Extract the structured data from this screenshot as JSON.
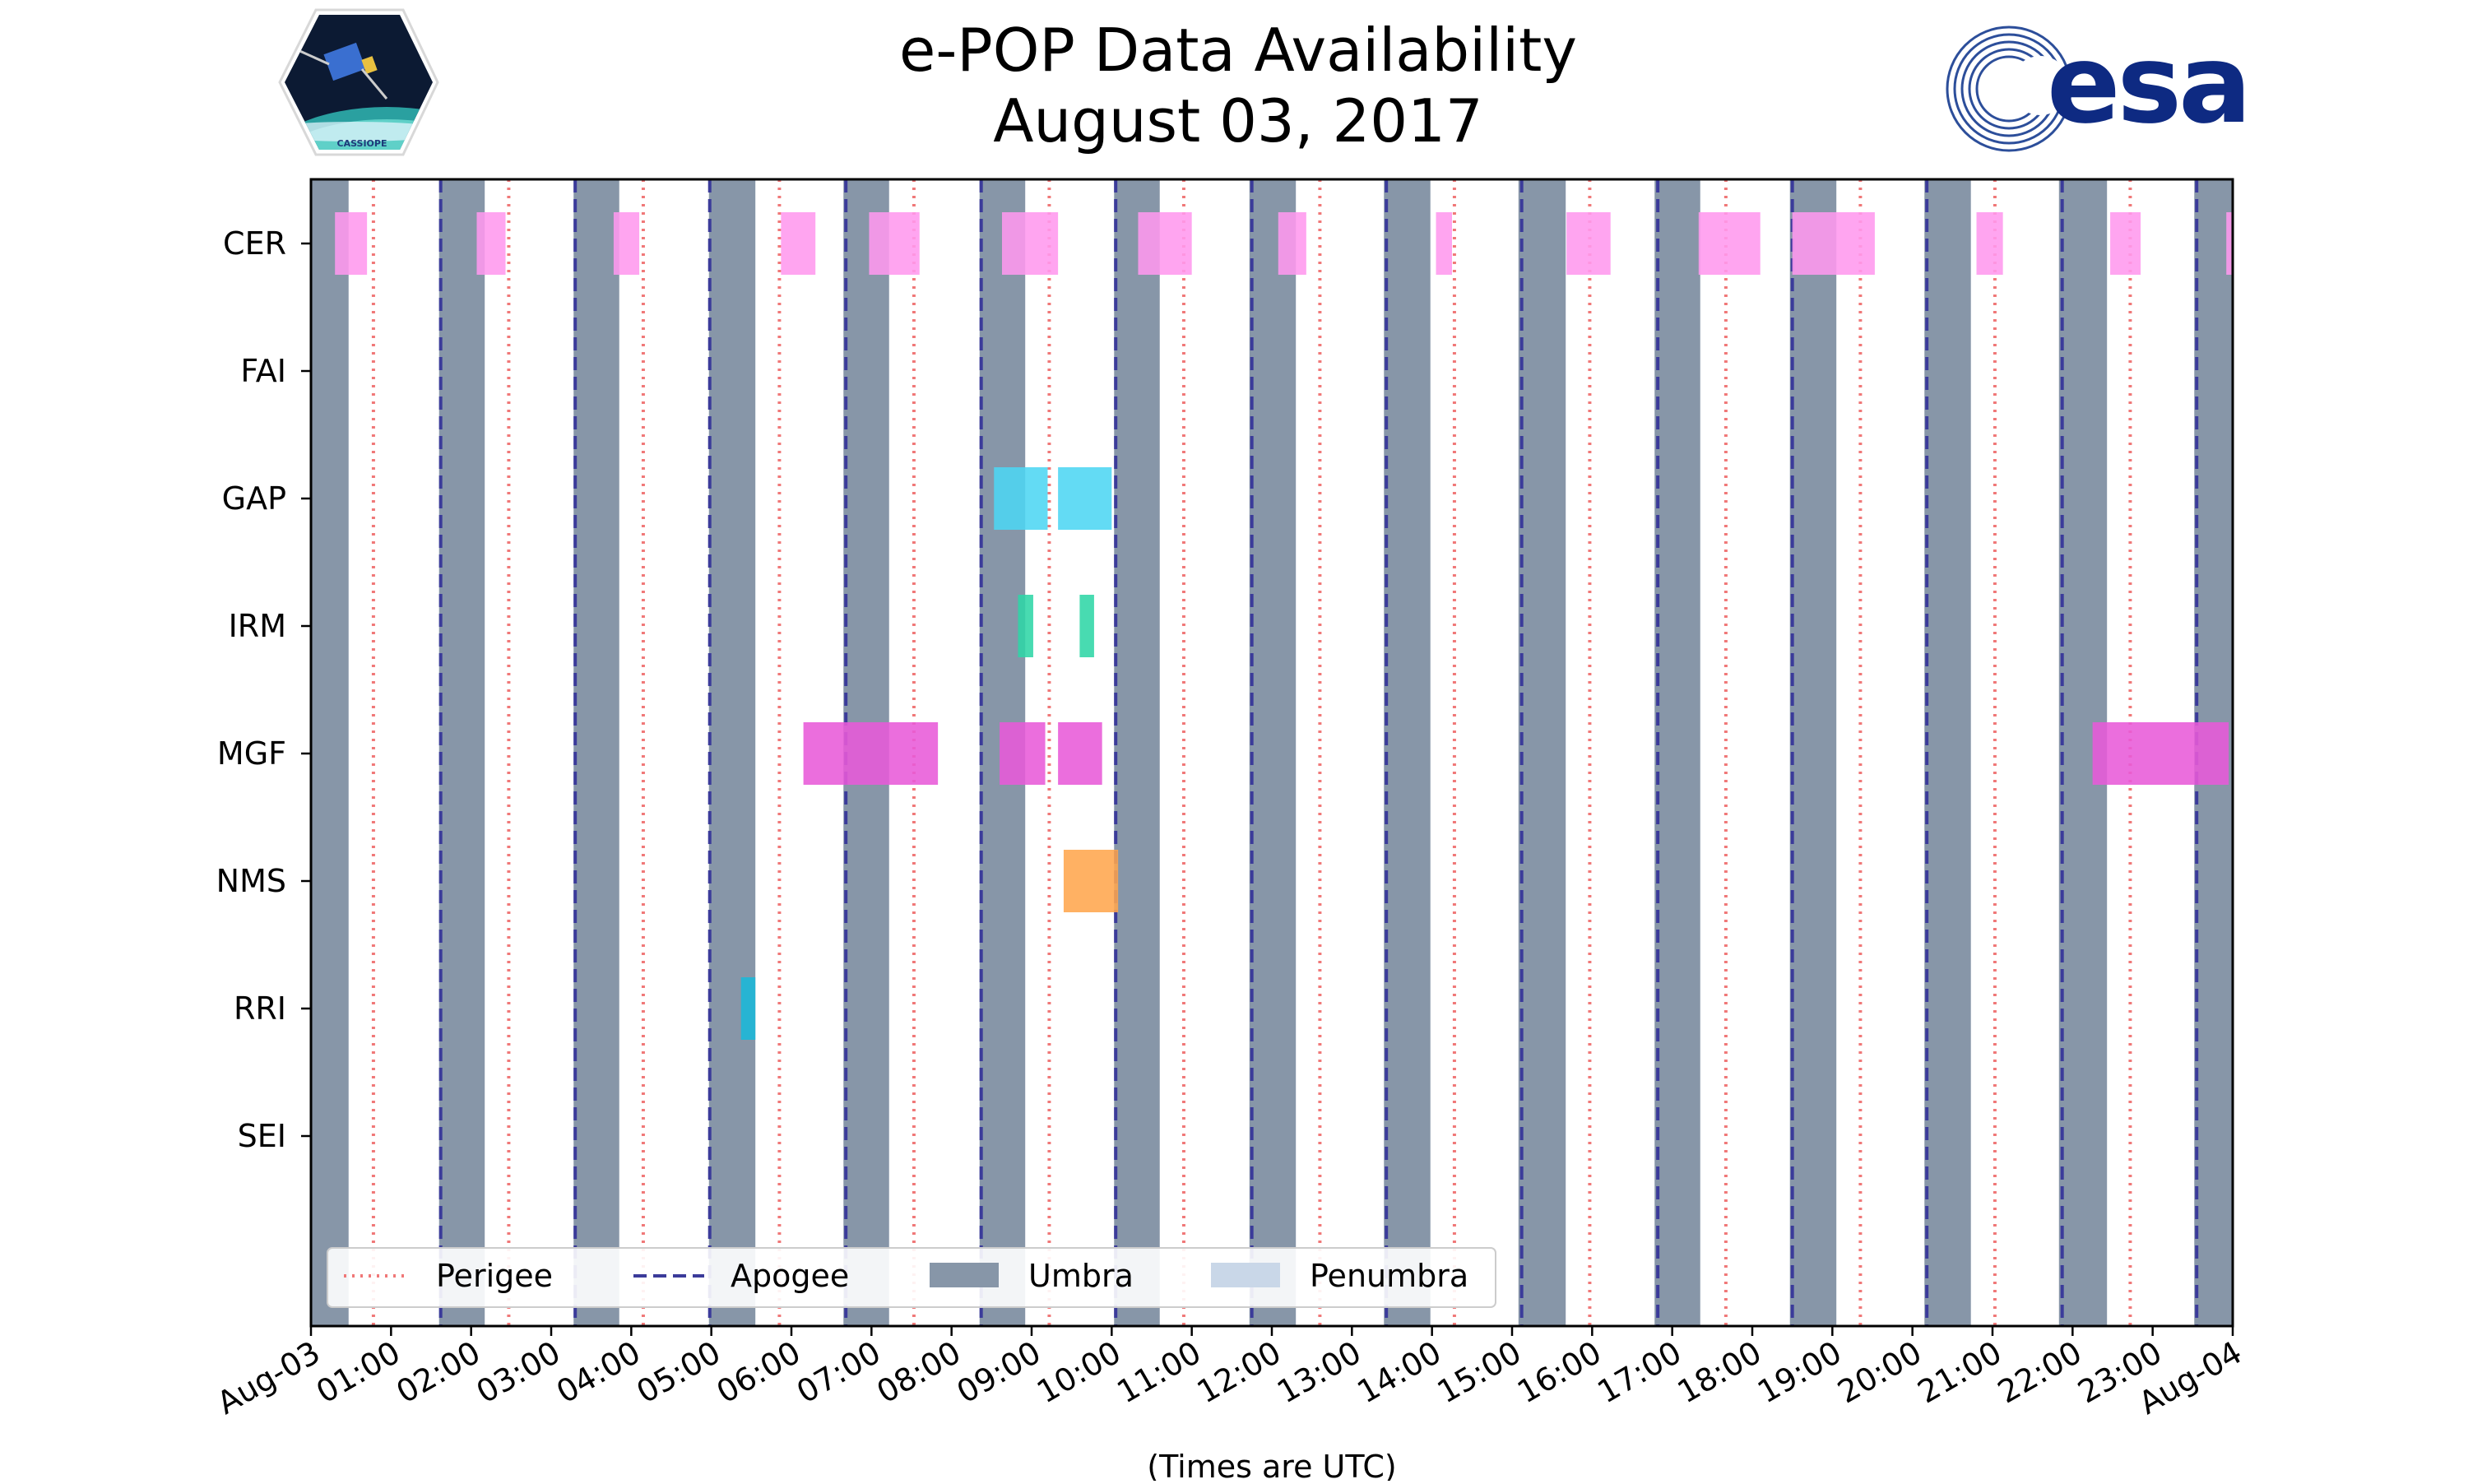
{
  "chart_data": {
    "type": "timeline",
    "title": "e-POP Data Availability",
    "subtitle": "August 03, 2017",
    "xlabel": "(Times are UTC)",
    "x_range_hours": [
      0,
      24
    ],
    "x_tick_labels": [
      "Aug-03",
      "01:00",
      "02:00",
      "03:00",
      "04:00",
      "05:00",
      "06:00",
      "07:00",
      "08:00",
      "09:00",
      "10:00",
      "11:00",
      "12:00",
      "13:00",
      "14:00",
      "15:00",
      "16:00",
      "17:00",
      "18:00",
      "19:00",
      "20:00",
      "21:00",
      "22:00",
      "23:00",
      "Aug-04"
    ],
    "instruments": [
      "CER",
      "FAI",
      "GAP",
      "IRM",
      "MGF",
      "NMS",
      "RRI",
      "SEI"
    ],
    "umbra": [
      [
        0,
        0.47
      ],
      [
        1.6,
        2.17
      ],
      [
        3.28,
        3.85
      ],
      [
        4.97,
        5.55
      ],
      [
        6.65,
        7.22
      ],
      [
        8.35,
        8.92
      ],
      [
        10.03,
        10.6
      ],
      [
        11.72,
        12.3
      ],
      [
        13.4,
        13.98
      ],
      [
        15.08,
        15.67
      ],
      [
        16.78,
        17.35
      ],
      [
        18.47,
        19.05
      ],
      [
        20.15,
        20.73
      ],
      [
        21.83,
        22.43
      ],
      [
        23.52,
        24
      ]
    ],
    "penumbra": [],
    "perigee_hours": [
      0.78,
      2.47,
      4.15,
      5.85,
      7.53,
      9.22,
      10.9,
      12.6,
      14.28,
      15.97,
      17.67,
      19.35,
      21.03,
      22.72
    ],
    "apogee_hours": [
      1.62,
      3.3,
      4.98,
      6.68,
      8.37,
      10.05,
      11.75,
      13.43,
      15.12,
      16.82,
      18.5,
      20.18,
      21.87,
      23.55
    ],
    "segments": {
      "CER": [
        [
          0.3,
          0.7
        ],
        [
          2.07,
          2.43
        ],
        [
          3.78,
          4.1
        ],
        [
          5.87,
          6.3
        ],
        [
          6.97,
          7.6
        ],
        [
          8.63,
          9.33
        ],
        [
          10.33,
          11.0
        ],
        [
          12.08,
          12.43
        ],
        [
          14.05,
          14.25
        ],
        [
          15.68,
          16.23
        ],
        [
          17.33,
          18.1
        ],
        [
          18.5,
          19.53
        ],
        [
          20.8,
          21.13
        ],
        [
          22.47,
          22.85
        ],
        [
          23.92,
          24.0
        ]
      ],
      "FAI": [],
      "GAP": [
        [
          8.53,
          9.2
        ],
        [
          9.33,
          10.0
        ]
      ],
      "IRM": [
        [
          8.83,
          9.02
        ],
        [
          9.6,
          9.78
        ]
      ],
      "MGF": [
        [
          6.15,
          7.83
        ],
        [
          8.6,
          9.17
        ],
        [
          9.33,
          9.88
        ],
        [
          22.25,
          23.95
        ]
      ],
      "NMS": [
        [
          9.4,
          10.08
        ]
      ],
      "RRI": [
        [
          5.37,
          5.55
        ]
      ],
      "SEI": []
    },
    "colors": {
      "CER": "#ff99ee",
      "FAI": "#66ccff",
      "GAP": "#4dd6f2",
      "IRM": "#2fd6a6",
      "MGF": "#e85ad8",
      "NMS": "#ffa64d",
      "RRI": "#1ab8d8",
      "SEI": "#999999",
      "umbra": "#8796a8",
      "penumbra": "#c9d7e8",
      "perigee": "#f07878",
      "apogee": "#3b3b9a"
    },
    "legend": {
      "position": "lower-left",
      "entries": [
        "Perigee",
        "Apogee",
        "Umbra",
        "Penumbra"
      ]
    }
  },
  "logos": {
    "left_caption": "CASSIOPE",
    "right_text": "esa"
  }
}
